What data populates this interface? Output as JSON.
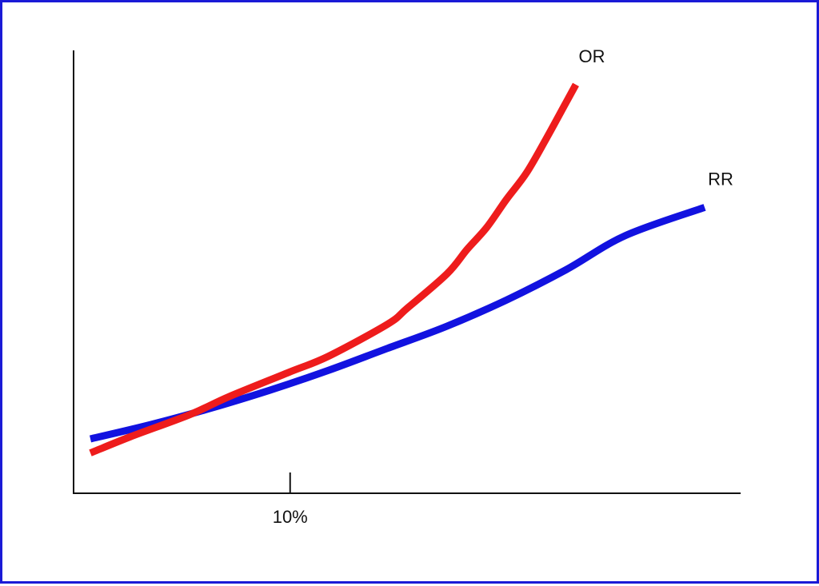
{
  "chart_data": {
    "type": "line",
    "title": "",
    "xlabel": "",
    "ylabel": "",
    "x_ticks": [
      {
        "value": 10,
        "label": "10%"
      }
    ],
    "xlim": [
      0,
      31
    ],
    "ylim": [
      0,
      22
    ],
    "grid": false,
    "legend": "none",
    "series": [
      {
        "name": "OR",
        "color": "#ee1c1c",
        "x": [
          0,
          2,
          5,
          7,
          10,
          12,
          15,
          16,
          18,
          19,
          20,
          21,
          22,
          23,
          24,
          24.5
        ],
        "y": [
          2.0,
          2.8,
          3.9,
          4.8,
          6.0,
          6.8,
          8.4,
          9.2,
          10.9,
          12.1,
          13.2,
          14.6,
          15.9,
          17.6,
          19.4,
          20.3
        ]
      },
      {
        "name": "RR",
        "color": "#1212e0",
        "x": [
          0,
          3,
          6,
          9,
          12,
          15,
          18,
          21,
          24,
          27,
          31
        ],
        "y": [
          2.7,
          3.4,
          4.2,
          5.1,
          6.1,
          7.2,
          8.3,
          9.6,
          11.1,
          12.8,
          14.2
        ]
      }
    ]
  }
}
